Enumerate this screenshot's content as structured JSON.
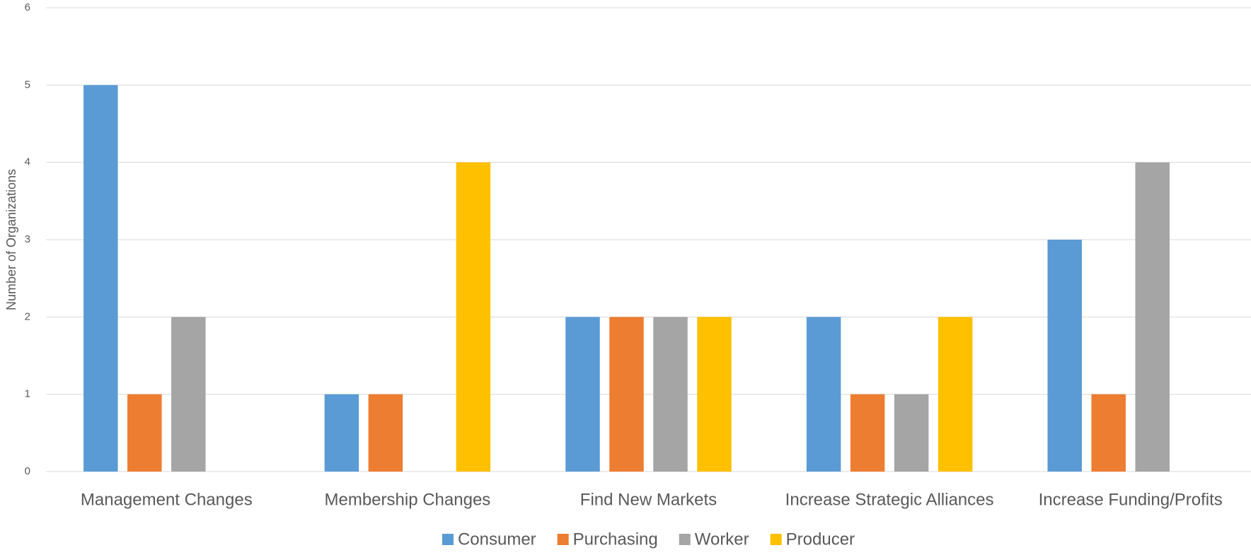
{
  "chart_data": {
    "type": "bar",
    "y_label": "Number of Organizations",
    "categories": [
      "Management Changes",
      "Membership Changes",
      "Find New Markets",
      "Increase Strategic Alliances",
      "Increase Funding/Profits"
    ],
    "series": [
      {
        "name": "Consumer",
        "color": "#5b9bd5",
        "values": [
          5,
          1,
          2,
          2,
          3
        ]
      },
      {
        "name": "Purchasing",
        "color": "#ed7d31",
        "values": [
          1,
          1,
          2,
          1,
          1
        ]
      },
      {
        "name": "Worker",
        "color": "#a5a5a5",
        "values": [
          2,
          0,
          2,
          1,
          4
        ]
      },
      {
        "name": "Producer",
        "color": "#ffc000",
        "values": [
          0,
          4,
          2,
          2,
          0
        ]
      }
    ],
    "ylim": [
      0,
      6
    ],
    "yticks": [
      0,
      1,
      2,
      3,
      4,
      5,
      6
    ],
    "grid": true,
    "legend": "bottom"
  }
}
